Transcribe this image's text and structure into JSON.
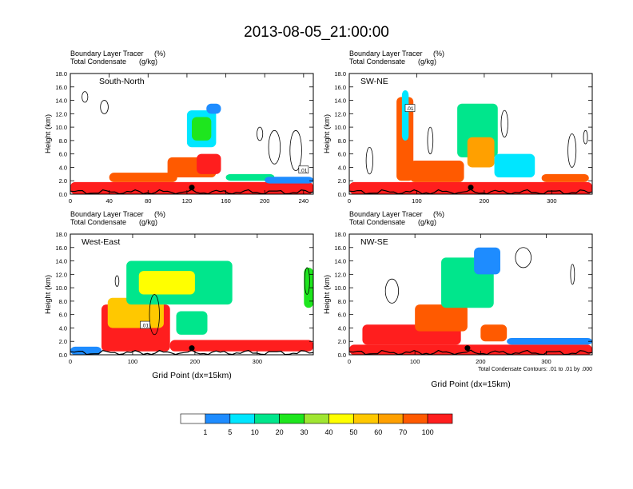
{
  "title": "2013-08-05_21:00:00",
  "labels": {
    "tracer": "Boundary Layer Tracer",
    "tracer_unit": "(%)",
    "condensate": "Total Condensate",
    "condensate_unit": "(g/kg)",
    "ylabel": "Height (km)",
    "xlabel": "Grid Point (dx=15km)",
    "contour_note": "Total Condensate Contours: .01 to .01 by .000",
    "contour_tag": ".01"
  },
  "colors": {
    "levels": [
      "#ffffff",
      "#1e8cff",
      "#00e6ff",
      "#00e68c",
      "#1ee61e",
      "#a0e632",
      "#ffff00",
      "#ffc800",
      "#ffa000",
      "#ff5a00",
      "#ff1e1e"
    ],
    "contour": "#000000",
    "marker": "#000000"
  },
  "chart_data": [
    {
      "type": "heatmap",
      "panel_label": "South-North",
      "x_ticks": [
        "0",
        "40",
        "80",
        "120",
        "160",
        "200",
        "240"
      ],
      "xlim": [
        0,
        250
      ],
      "ylim": [
        0,
        18
      ],
      "y_ticks": [
        "0.0",
        "2.0",
        "4.0",
        "6.0",
        "8.0",
        "10.0",
        "12.0",
        "14.0",
        "16.0",
        "18.0"
      ],
      "marker_x": 125,
      "marker_y": 1.0,
      "tag_x": 240,
      "tag_y": 3.6,
      "features": [
        {
          "x": 0,
          "w": 250,
          "base": 0,
          "top": 1.8,
          "level": 10
        },
        {
          "x": 40,
          "w": 70,
          "base": 1.8,
          "top": 3.2,
          "level": 9
        },
        {
          "x": 100,
          "w": 50,
          "base": 2.5,
          "top": 5.5,
          "level": 9
        },
        {
          "x": 130,
          "w": 25,
          "base": 3.0,
          "top": 6.0,
          "level": 10
        },
        {
          "x": 120,
          "w": 30,
          "base": 7.0,
          "top": 12.5,
          "level": 2
        },
        {
          "x": 125,
          "w": 20,
          "base": 8.0,
          "top": 11.5,
          "level": 4
        },
        {
          "x": 140,
          "w": 15,
          "base": 12.0,
          "top": 13.5,
          "level": 1
        },
        {
          "x": 160,
          "w": 50,
          "base": 2.0,
          "top": 3.0,
          "level": 3
        },
        {
          "x": 200,
          "w": 50,
          "base": 1.6,
          "top": 2.6,
          "level": 1
        }
      ],
      "contours": [
        {
          "x": 15,
          "y": 14.5,
          "rx": 3,
          "ry": 0.8
        },
        {
          "x": 35,
          "y": 13.0,
          "rx": 4,
          "ry": 1.0
        },
        {
          "x": 210,
          "y": 7.0,
          "rx": 6,
          "ry": 2.5
        },
        {
          "x": 232,
          "y": 6.5,
          "rx": 6,
          "ry": 3.0
        },
        {
          "x": 195,
          "y": 9.0,
          "rx": 3,
          "ry": 1.0
        }
      ]
    },
    {
      "type": "heatmap",
      "panel_label": "SW-NE",
      "x_ticks": [
        "0",
        "100",
        "200",
        "300"
      ],
      "xlim": [
        0,
        360
      ],
      "ylim": [
        0,
        18
      ],
      "y_ticks": [
        "0.0",
        "2.0",
        "4.0",
        "6.0",
        "8.0",
        "10.0",
        "12.0",
        "14.0",
        "16.0",
        "18.0"
      ],
      "marker_x": 180,
      "marker_y": 1.0,
      "tag_x": 90,
      "tag_y": 12.8,
      "features": [
        {
          "x": 0,
          "w": 360,
          "base": 0,
          "top": 1.8,
          "level": 10
        },
        {
          "x": 70,
          "w": 25,
          "base": 2.0,
          "top": 14.5,
          "level": 9
        },
        {
          "x": 78,
          "w": 10,
          "base": 8.0,
          "top": 15.5,
          "level": 2
        },
        {
          "x": 90,
          "w": 80,
          "base": 1.8,
          "top": 5.0,
          "level": 9
        },
        {
          "x": 160,
          "w": 60,
          "base": 5.5,
          "top": 13.5,
          "level": 3
        },
        {
          "x": 175,
          "w": 40,
          "base": 4.0,
          "top": 8.5,
          "level": 8
        },
        {
          "x": 215,
          "w": 60,
          "base": 2.5,
          "top": 6.0,
          "level": 2
        },
        {
          "x": 285,
          "w": 70,
          "base": 1.8,
          "top": 3.0,
          "level": 9
        }
      ],
      "contours": [
        {
          "x": 30,
          "y": 5.0,
          "rx": 5,
          "ry": 2.0
        },
        {
          "x": 120,
          "y": 8.0,
          "rx": 4,
          "ry": 2.0
        },
        {
          "x": 230,
          "y": 10.5,
          "rx": 5,
          "ry": 2.0
        },
        {
          "x": 330,
          "y": 6.5,
          "rx": 6,
          "ry": 2.5
        },
        {
          "x": 350,
          "y": 8.5,
          "rx": 3,
          "ry": 1.0
        }
      ]
    },
    {
      "type": "heatmap",
      "panel_label": "West-East",
      "x_ticks": [
        "0",
        "100",
        "200",
        "300"
      ],
      "xlim": [
        0,
        390
      ],
      "ylim": [
        0,
        18
      ],
      "y_ticks": [
        "0.0",
        "2.0",
        "4.0",
        "6.0",
        "8.0",
        "10.0",
        "12.0",
        "14.0",
        "16.0",
        "18.0"
      ],
      "marker_x": 195,
      "marker_y": 1.0,
      "tag_x": 120,
      "tag_y": 4.4,
      "features": [
        {
          "x": 0,
          "w": 50,
          "base": 0,
          "top": 1.2,
          "level": 1
        },
        {
          "x": 50,
          "w": 110,
          "base": 0.5,
          "top": 7.5,
          "level": 10
        },
        {
          "x": 60,
          "w": 90,
          "base": 4.0,
          "top": 8.5,
          "level": 7
        },
        {
          "x": 160,
          "w": 230,
          "base": 0.5,
          "top": 2.2,
          "level": 10
        },
        {
          "x": 90,
          "w": 170,
          "base": 7.5,
          "top": 14.0,
          "level": 3
        },
        {
          "x": 110,
          "w": 90,
          "base": 9.0,
          "top": 12.5,
          "level": 6
        },
        {
          "x": 170,
          "w": 50,
          "base": 3.0,
          "top": 6.5,
          "level": 3
        },
        {
          "x": 375,
          "w": 15,
          "base": 7.0,
          "top": 13.0,
          "level": 4
        }
      ],
      "contours": [
        {
          "x": 75,
          "y": 11.0,
          "rx": 3,
          "ry": 0.8
        },
        {
          "x": 135,
          "y": 6.0,
          "rx": 8,
          "ry": 3.0
        },
        {
          "x": 380,
          "y": 11.0,
          "rx": 4,
          "ry": 2.0
        }
      ]
    },
    {
      "type": "heatmap",
      "panel_label": "NW-SE",
      "x_ticks": [
        "0",
        "100",
        "200",
        "300"
      ],
      "xlim": [
        0,
        370
      ],
      "ylim": [
        0,
        18
      ],
      "y_ticks": [
        "0.0",
        "2.0",
        "4.0",
        "6.0",
        "8.0",
        "10.0",
        "12.0",
        "14.0",
        "16.0",
        "18.0"
      ],
      "marker_x": 180,
      "marker_y": 1.0,
      "tag_x": 0,
      "tag_y": 0,
      "features": [
        {
          "x": 0,
          "w": 370,
          "base": 0,
          "top": 1.5,
          "level": 10
        },
        {
          "x": 20,
          "w": 150,
          "base": 1.5,
          "top": 4.5,
          "level": 10
        },
        {
          "x": 100,
          "w": 80,
          "base": 3.5,
          "top": 7.5,
          "level": 9
        },
        {
          "x": 140,
          "w": 80,
          "base": 7.0,
          "top": 14.5,
          "level": 3
        },
        {
          "x": 190,
          "w": 40,
          "base": 12.0,
          "top": 16.0,
          "level": 1
        },
        {
          "x": 200,
          "w": 40,
          "base": 2.0,
          "top": 4.5,
          "level": 9
        },
        {
          "x": 240,
          "w": 130,
          "base": 1.5,
          "top": 2.5,
          "level": 1
        }
      ],
      "contours": [
        {
          "x": 65,
          "y": 9.5,
          "rx": 10,
          "ry": 1.8
        },
        {
          "x": 265,
          "y": 14.5,
          "rx": 12,
          "ry": 1.5
        },
        {
          "x": 340,
          "y": 12.0,
          "rx": 3,
          "ry": 1.5
        }
      ]
    }
  ],
  "legend": {
    "type": "colorbar",
    "labels": [
      "1",
      "5",
      "10",
      "20",
      "30",
      "40",
      "50",
      "60",
      "70",
      "100"
    ]
  }
}
